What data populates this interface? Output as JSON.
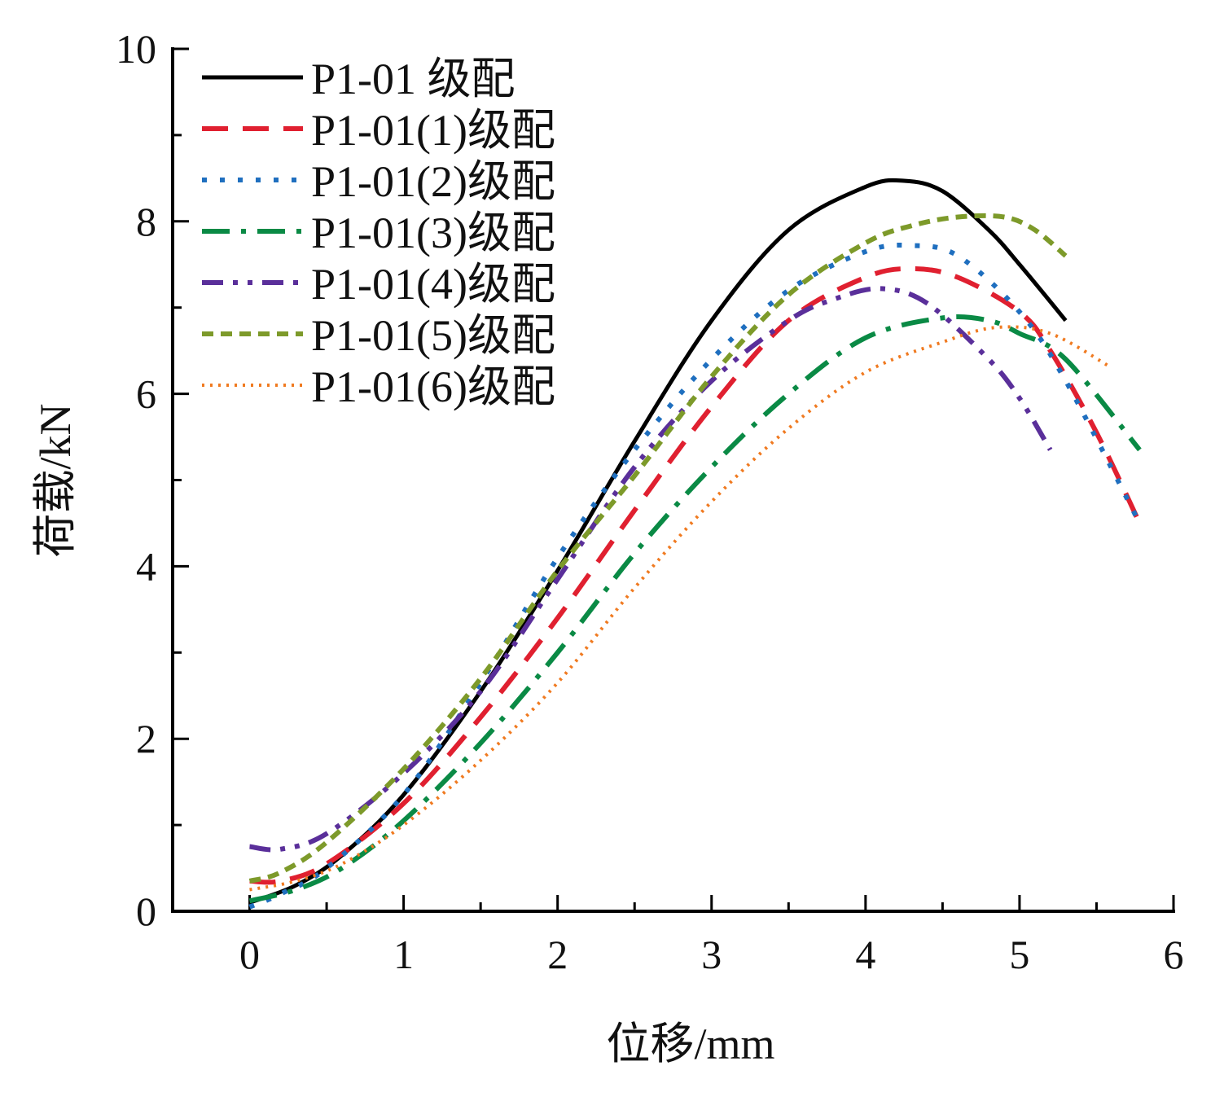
{
  "chart_data": {
    "type": "line",
    "title": "",
    "xlabel": "位移/mm",
    "ylabel": "荷载/kN",
    "xlim": [
      -0.5,
      6
    ],
    "ylim": [
      0,
      10
    ],
    "xticks": [
      0,
      1,
      2,
      3,
      4,
      5,
      6
    ],
    "xtick_labels": [
      "0",
      "1",
      "2",
      "3",
      "4",
      "5",
      "6"
    ],
    "yticks": [
      0,
      2,
      4,
      6,
      8,
      10
    ],
    "ytick_labels": [
      "0",
      "2",
      "4",
      "6",
      "8",
      "10"
    ],
    "grid": false,
    "legend_position": "top-left",
    "series": [
      {
        "name": "P1-01 级配",
        "color": "#000000",
        "dash": "solid",
        "x": [
          0,
          0.3,
          0.6,
          1.0,
          1.5,
          2.0,
          2.5,
          3.0,
          3.5,
          4.0,
          4.25,
          4.5,
          4.8,
          5.0,
          5.3
        ],
        "y": [
          0.1,
          0.3,
          0.65,
          1.35,
          2.55,
          3.95,
          5.45,
          6.85,
          7.9,
          8.4,
          8.47,
          8.35,
          7.9,
          7.5,
          6.85
        ]
      },
      {
        "name": "P1-01(1)级配",
        "color": "#e02030",
        "dash": "long-dash",
        "x": [
          0,
          0.2,
          0.5,
          1.0,
          1.5,
          2.0,
          2.5,
          3.0,
          3.5,
          4.0,
          4.3,
          4.6,
          5.0,
          5.2,
          5.5,
          5.78
        ],
        "y": [
          0.35,
          0.35,
          0.55,
          1.25,
          2.25,
          3.4,
          4.65,
          5.85,
          6.85,
          7.35,
          7.45,
          7.35,
          6.95,
          6.5,
          5.55,
          4.5
        ]
      },
      {
        "name": "P1-01(2)级配",
        "color": "#1f6fbf",
        "dash": "dotted",
        "x": [
          0,
          0.2,
          0.5,
          1.0,
          1.5,
          2.0,
          2.5,
          3.0,
          3.5,
          4.0,
          4.3,
          4.6,
          5.0,
          5.3,
          5.78
        ],
        "y": [
          0.05,
          0.2,
          0.5,
          1.35,
          2.65,
          4.1,
          5.35,
          6.4,
          7.2,
          7.65,
          7.72,
          7.6,
          6.95,
          6.15,
          4.5
        ]
      },
      {
        "name": "P1-01(3)级配",
        "color": "#0a8a45",
        "dash": "dash-dot",
        "x": [
          0,
          0.3,
          0.6,
          1.0,
          1.5,
          2.0,
          2.5,
          3.0,
          3.5,
          4.0,
          4.5,
          4.8,
          5.0,
          5.3,
          5.78
        ],
        "y": [
          0.12,
          0.25,
          0.5,
          1.05,
          1.95,
          3.0,
          4.15,
          5.15,
          6.0,
          6.65,
          6.88,
          6.85,
          6.7,
          6.4,
          5.35
        ]
      },
      {
        "name": "P1-01(4)级配",
        "color": "#5a2f9a",
        "dash": "dash-dot-dot",
        "x": [
          0,
          0.2,
          0.5,
          1.0,
          1.5,
          2.0,
          2.5,
          3.0,
          3.5,
          3.8,
          4.1,
          4.4,
          4.8,
          5.0,
          5.2
        ],
        "y": [
          0.75,
          0.72,
          0.9,
          1.6,
          2.55,
          3.85,
          5.15,
          6.15,
          6.85,
          7.1,
          7.22,
          7.05,
          6.4,
          5.95,
          5.35
        ]
      },
      {
        "name": "P1-01(5)级配",
        "color": "#7d9a2a",
        "dash": "short-dash",
        "x": [
          0,
          0.2,
          0.5,
          1.0,
          1.5,
          2.0,
          2.5,
          3.0,
          3.5,
          4.0,
          4.3,
          4.6,
          4.9,
          5.1,
          5.3
        ],
        "y": [
          0.35,
          0.45,
          0.8,
          1.65,
          2.7,
          3.95,
          5.05,
          6.2,
          7.15,
          7.75,
          7.95,
          8.05,
          8.05,
          7.9,
          7.6
        ]
      },
      {
        "name": "P1-01(6)级配",
        "color": "#f07a20",
        "dash": "fine-dot",
        "x": [
          0,
          0.3,
          0.6,
          1.0,
          1.5,
          2.0,
          2.5,
          3.0,
          3.5,
          4.0,
          4.5,
          4.85,
          5.2,
          5.6
        ],
        "y": [
          0.25,
          0.35,
          0.55,
          1.0,
          1.75,
          2.65,
          3.75,
          4.75,
          5.6,
          6.25,
          6.6,
          6.77,
          6.7,
          6.3
        ]
      }
    ]
  }
}
